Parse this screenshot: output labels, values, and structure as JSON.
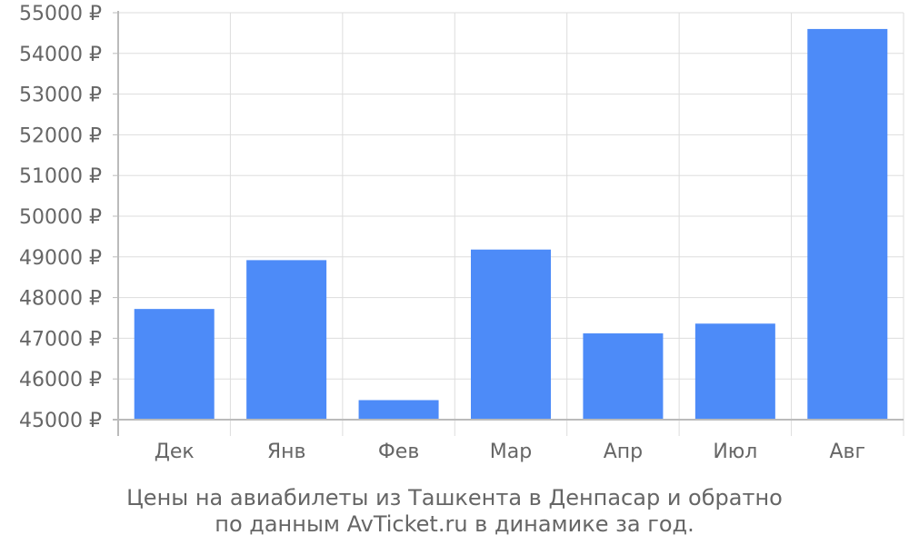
{
  "chart_data": {
    "type": "bar",
    "categories": [
      "Дек",
      "Янв",
      "Фев",
      "Мар",
      "Апр",
      "Июл",
      "Авг"
    ],
    "values": [
      47720,
      48920,
      45480,
      49180,
      47120,
      47360,
      54600
    ],
    "ylim": [
      45000,
      55000
    ],
    "yticks": [
      45000,
      46000,
      47000,
      48000,
      49000,
      50000,
      51000,
      52000,
      53000,
      54000,
      55000
    ],
    "ytick_suffix": " ₽",
    "grid": true,
    "bar_color": "#4d8bf8",
    "grid_color": "#dddddd",
    "axis_color": "#bbbbbb",
    "text_color": "#666666"
  },
  "caption": {
    "line1": "Цены на авиабилеты из Ташкента в Денпасар и обратно",
    "line2": "по данным AvTicket.ru в динамике за год."
  }
}
